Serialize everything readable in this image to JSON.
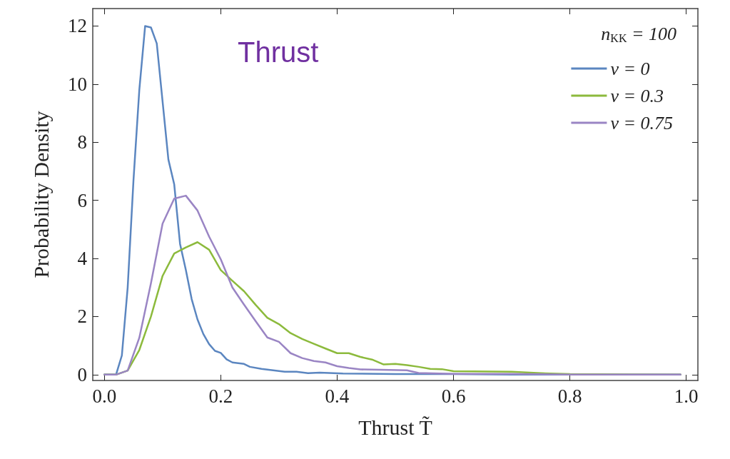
{
  "chart_data": {
    "type": "line",
    "title": "Thrust",
    "xlabel": "Thrust T̃",
    "ylabel": "Probability Density",
    "legend_title": "n$_{KK}$ = 100",
    "legend": "top right",
    "grid": false,
    "marker": "none",
    "line_style": "solid",
    "xlim": [
      -0.02,
      1.02
    ],
    "xticks": [
      {
        "value": 0,
        "label": "0.0"
      },
      0.2,
      0.4,
      0.6,
      0.8,
      {
        "value": 1,
        "label": "1.0"
      }
    ],
    "ylim": [
      -0.2,
      12.6
    ],
    "yticks": [
      0,
      2,
      4,
      6,
      8,
      10,
      12
    ],
    "series": [
      {
        "name": "ν = 0",
        "color": "#5b86c0",
        "x": [
          0,
          0.02,
          0.03,
          0.04,
          0.05,
          0.06,
          0.07,
          0.08,
          0.09,
          0.11,
          0.12,
          0.13,
          0.14,
          0.15,
          0.16,
          0.17,
          0.18,
          0.19,
          0.2,
          0.21,
          0.22,
          0.24,
          0.25,
          0.27,
          0.31,
          0.33,
          0.35,
          0.37,
          0.41,
          0.5,
          0.6,
          0.7,
          0.8,
          0.9,
          0.99
        ],
        "values": [
          0,
          0,
          0.66,
          3.0,
          6.7,
          9.8,
          12.0,
          11.95,
          11.4,
          7.4,
          6.55,
          4.5,
          3.6,
          2.6,
          1.9,
          1.4,
          1.05,
          0.82,
          0.75,
          0.53,
          0.42,
          0.37,
          0.27,
          0.2,
          0.1,
          0.1,
          0.05,
          0.07,
          0.04,
          0.02,
          0.02,
          0,
          0,
          0,
          0
        ]
      },
      {
        "name": "ν = 0.3",
        "color": "#8cba3c",
        "x": [
          0,
          0.02,
          0.04,
          0.06,
          0.08,
          0.1,
          0.12,
          0.14,
          0.16,
          0.18,
          0.2,
          0.22,
          0.24,
          0.26,
          0.28,
          0.3,
          0.32,
          0.34,
          0.36,
          0.38,
          0.4,
          0.42,
          0.44,
          0.46,
          0.48,
          0.5,
          0.52,
          0.54,
          0.56,
          0.58,
          0.6,
          0.7,
          0.75,
          0.8,
          0.9,
          0.99
        ],
        "values": [
          0,
          0,
          0.14,
          0.85,
          2.0,
          3.4,
          4.17,
          4.38,
          4.56,
          4.3,
          3.6,
          3.23,
          2.87,
          2.4,
          1.96,
          1.74,
          1.43,
          1.23,
          1.06,
          0.9,
          0.74,
          0.74,
          0.61,
          0.52,
          0.35,
          0.37,
          0.33,
          0.27,
          0.2,
          0.19,
          0.12,
          0.1,
          0.05,
          0.02,
          0.01,
          0
        ]
      },
      {
        "name": "ν = 0.75",
        "color": "#9a85c4",
        "x": [
          0,
          0.02,
          0.04,
          0.06,
          0.08,
          0.1,
          0.12,
          0.14,
          0.16,
          0.18,
          0.2,
          0.22,
          0.24,
          0.26,
          0.28,
          0.3,
          0.32,
          0.34,
          0.36,
          0.38,
          0.4,
          0.42,
          0.44,
          0.52,
          0.54,
          0.6,
          0.7,
          0.8,
          0.9,
          0.99
        ],
        "values": [
          0,
          0,
          0.14,
          1.27,
          3.15,
          5.2,
          6.06,
          6.16,
          5.65,
          4.75,
          3.97,
          3.0,
          2.41,
          1.84,
          1.28,
          1.13,
          0.74,
          0.57,
          0.47,
          0.42,
          0.29,
          0.23,
          0.18,
          0.15,
          0.06,
          0.03,
          0.03,
          0,
          0,
          0
        ]
      }
    ]
  }
}
